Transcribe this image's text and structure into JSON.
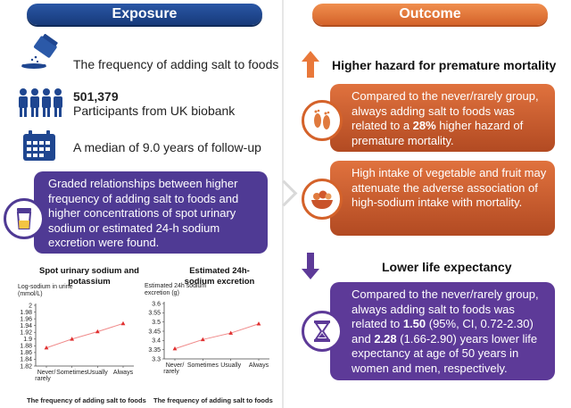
{
  "exposure": {
    "header": "Exposure",
    "item1": "The frequency of adding salt to foods",
    "item2_number": "501,379",
    "item2_text": "Participants from UK biobank",
    "item3": "A median of 9.0 years of follow-up",
    "finding": "Graded relationships between higher frequency of adding salt to foods and higher concentrations of spot urinary sodium or estimated 24-h sodium excretion were found."
  },
  "outcome": {
    "header": "Outcome",
    "higher_title": "Higher hazard for premature mortality",
    "box1_pre": "Compared to the never/rarely group, always adding salt to foods was related to a ",
    "box1_bold": "28%",
    "box1_post": " higher hazard of premature mortality.",
    "box2": "High intake of vegetable and fruit may attenuate the adverse association of high-sodium intake with mortality.",
    "lower_title": "Lower life expectancy",
    "box3_pre": "Compared to the never/rarely group, always adding salt to foods was related to ",
    "box3_bold1": "1.50",
    "box3_mid": " (95%, CI, 0.72-2.30) and ",
    "box3_bold2": "2.28",
    "box3_post": " (1.66-2.90) years lower life expectancy at age of 50 years in women and men, respectively."
  },
  "colors": {
    "blue": "#1f4690",
    "orange": "#e0723e",
    "purple": "#4f3a94",
    "red_marker": "#e03030"
  },
  "chart_data": [
    {
      "type": "line",
      "title": "Spot urinary sodium and potassium",
      "ylabel": "Log-sodium in urine (mmol/L)",
      "xlabel": "The frequency of adding salt to foods",
      "categories": [
        "Never/ rarely",
        "Sometimes",
        "Usually",
        "Always"
      ],
      "values": [
        1.874,
        1.9,
        1.922,
        1.946
      ],
      "ylim": [
        1.82,
        2.0
      ],
      "yticks": [
        "2",
        "1.98",
        "1.96",
        "1.94",
        "1.92",
        "1.9",
        "1.88",
        "1.86",
        "1.84",
        "1.82"
      ]
    },
    {
      "type": "line",
      "title": "Estimated 24h-sodium excretion",
      "ylabel": "Estimated 24h sodium excretion (g)",
      "xlabel": "The frequency of adding salt to foods",
      "categories": [
        "Never/ rarely",
        "Sometimes",
        "Usually",
        "Always"
      ],
      "values": [
        3.355,
        3.405,
        3.44,
        3.49
      ],
      "ylim": [
        3.3,
        3.6
      ],
      "yticks": [
        "3.6",
        "3.55",
        "3.5",
        "3.45",
        "3.4",
        "3.35",
        "3.3"
      ]
    }
  ]
}
